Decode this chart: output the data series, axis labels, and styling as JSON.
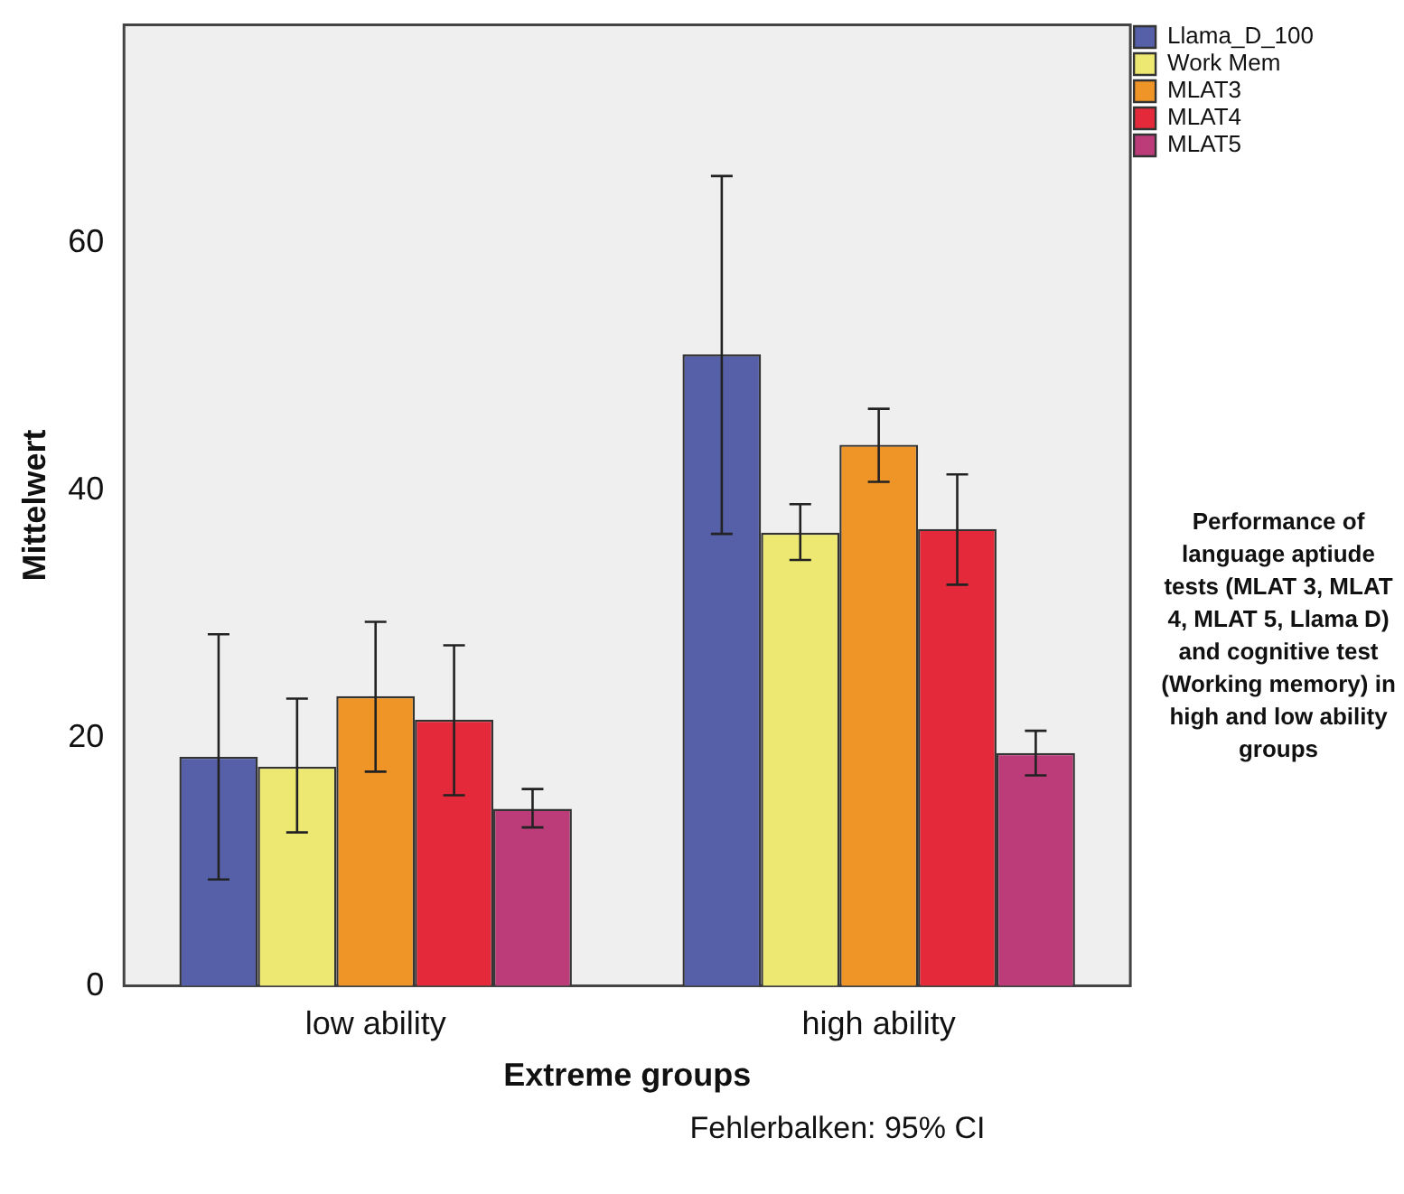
{
  "chart_data": {
    "type": "bar",
    "categories": [
      "low ability",
      "high ability"
    ],
    "series": [
      {
        "name": "Llama_D_100",
        "color": "#5560a8",
        "values": [
          18.5,
          51.0
        ],
        "errors": [
          [
            8.6,
            28.4
          ],
          [
            36.5,
            65.4
          ]
        ]
      },
      {
        "name": "Work Mem",
        "color": "#ece871",
        "values": [
          17.7,
          36.6
        ],
        "errors": [
          [
            12.4,
            23.2
          ],
          [
            34.4,
            38.9
          ]
        ]
      },
      {
        "name": "MLAT3",
        "color": "#ef9426",
        "values": [
          23.4,
          43.7
        ],
        "errors": [
          [
            17.3,
            29.4
          ],
          [
            40.7,
            46.6
          ]
        ]
      },
      {
        "name": "MLAT4",
        "color": "#e42a3a",
        "values": [
          21.5,
          36.9
        ],
        "errors": [
          [
            15.4,
            27.5
          ],
          [
            32.4,
            41.3
          ]
        ]
      },
      {
        "name": "MLAT5",
        "color": "#bc3c7a",
        "values": [
          14.3,
          18.8
        ],
        "errors": [
          [
            12.8,
            15.9
          ],
          [
            17.0,
            20.6
          ]
        ]
      }
    ],
    "xlabel": "Extreme groups",
    "ylabel": "Mittelwert",
    "ylim": [
      0,
      77.6
    ],
    "yticks": [
      0,
      20,
      40,
      60
    ],
    "grid": false,
    "legend": "top right",
    "annotations": [
      "Performance of language aptiude tests (MLAT 3, MLAT 4, MLAT 5, Llama D) and cognitive test (Working memory) in high and low ability groups",
      "Fehlerbalken: 95% CI"
    ]
  }
}
